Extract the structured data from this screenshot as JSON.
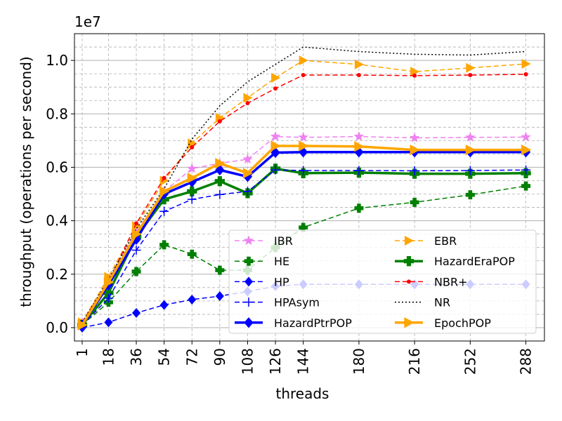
{
  "chart_data": {
    "type": "line",
    "title": "",
    "xlabel": "threads",
    "ylabel": "throughput (operations per second)",
    "y_offset_label": "1e7",
    "xlim": [
      -4,
      300
    ],
    "ylim": [
      -0.05,
      1.1
    ],
    "x_ticks": [
      1,
      18,
      36,
      54,
      72,
      90,
      108,
      126,
      144,
      180,
      216,
      252,
      288
    ],
    "y_ticks": [
      0.0,
      0.2,
      0.4,
      0.6,
      0.8,
      1.0
    ],
    "y_tick_labels": [
      "0.0",
      "0.2",
      "0.4",
      "0.6",
      "0.8",
      "1.0"
    ],
    "grid": true,
    "legend_position": "lower-right",
    "x": [
      1,
      18,
      36,
      54,
      72,
      90,
      108,
      126,
      144,
      180,
      216,
      252,
      288
    ],
    "series": [
      {
        "name": "IBR",
        "color": "#ee82ee",
        "dash": "dashed",
        "marker": "star",
        "width": 1.5,
        "values": [
          0.02,
          0.18,
          0.36,
          0.51,
          0.595,
          0.615,
          0.63,
          0.715,
          0.712,
          0.715,
          0.71,
          0.712,
          0.713
        ]
      },
      {
        "name": "EBR",
        "color": "#ffa500",
        "dash": "dashed",
        "marker": "triangle-right",
        "width": 1.5,
        "values": [
          0.02,
          0.19,
          0.38,
          0.55,
          0.69,
          0.785,
          0.86,
          0.935,
          1.0,
          0.985,
          0.958,
          0.972,
          0.987
        ]
      },
      {
        "name": "HE",
        "color": "#008000",
        "dash": "dashed",
        "marker": "plus-filled",
        "width": 1.5,
        "values": [
          0.01,
          0.095,
          0.21,
          0.31,
          0.275,
          0.215,
          0.215,
          0.3,
          0.375,
          0.447,
          0.469,
          0.497,
          0.53
        ]
      },
      {
        "name": "HazardEraPOP",
        "color": "#008000",
        "dash": "solid",
        "marker": "plus-filled",
        "width": 3.5,
        "values": [
          0.01,
          0.13,
          0.34,
          0.48,
          0.51,
          0.548,
          0.503,
          0.595,
          0.578,
          0.58,
          0.576,
          0.576,
          0.578
        ]
      },
      {
        "name": "HP",
        "color": "#0000ff",
        "dash": "dashed",
        "marker": "diamond",
        "width": 1.5,
        "values": [
          0.0,
          0.02,
          0.055,
          0.085,
          0.105,
          0.118,
          0.135,
          0.155,
          0.162,
          0.162,
          0.162,
          0.162,
          0.162
        ]
      },
      {
        "name": "NBR+",
        "color": "#ff0000",
        "dash": "dashed",
        "marker": "dot",
        "width": 1.5,
        "values": [
          0.02,
          0.17,
          0.39,
          0.56,
          0.675,
          0.772,
          0.84,
          0.895,
          0.945,
          0.945,
          0.943,
          0.945,
          0.948
        ]
      },
      {
        "name": "HPAsym",
        "color": "#0000ff",
        "dash": "dashed",
        "marker": "plus",
        "width": 1.5,
        "values": [
          0.01,
          0.11,
          0.29,
          0.435,
          0.48,
          0.498,
          0.51,
          0.59,
          0.588,
          0.588,
          0.587,
          0.588,
          0.59
        ]
      },
      {
        "name": "NR",
        "color": "#000000",
        "dash": "dotted",
        "marker": "none",
        "width": 1.5,
        "values": [
          0.02,
          0.18,
          0.37,
          0.52,
          0.705,
          0.83,
          0.92,
          0.985,
          1.05,
          1.033,
          1.023,
          1.02,
          1.033
        ]
      },
      {
        "name": "HazardPtrPOP",
        "color": "#0000ff",
        "dash": "solid",
        "marker": "diamond",
        "width": 3.5,
        "values": [
          0.01,
          0.16,
          0.33,
          0.5,
          0.545,
          0.59,
          0.565,
          0.655,
          0.657,
          0.657,
          0.657,
          0.657,
          0.657
        ]
      },
      {
        "name": "EpochPOP",
        "color": "#ffa500",
        "dash": "solid",
        "marker": "triangle-right",
        "width": 3.5,
        "values": [
          0.01,
          0.17,
          0.35,
          0.51,
          0.56,
          0.615,
          0.578,
          0.68,
          0.68,
          0.678,
          0.665,
          0.665,
          0.665
        ]
      }
    ],
    "legend_columns": [
      [
        "IBR",
        "HE",
        "HP",
        "HPAsym",
        "HazardPtrPOP"
      ],
      [
        "EBR",
        "HazardEraPOP",
        "NBR+",
        "NR",
        "EpochPOP"
      ]
    ]
  }
}
